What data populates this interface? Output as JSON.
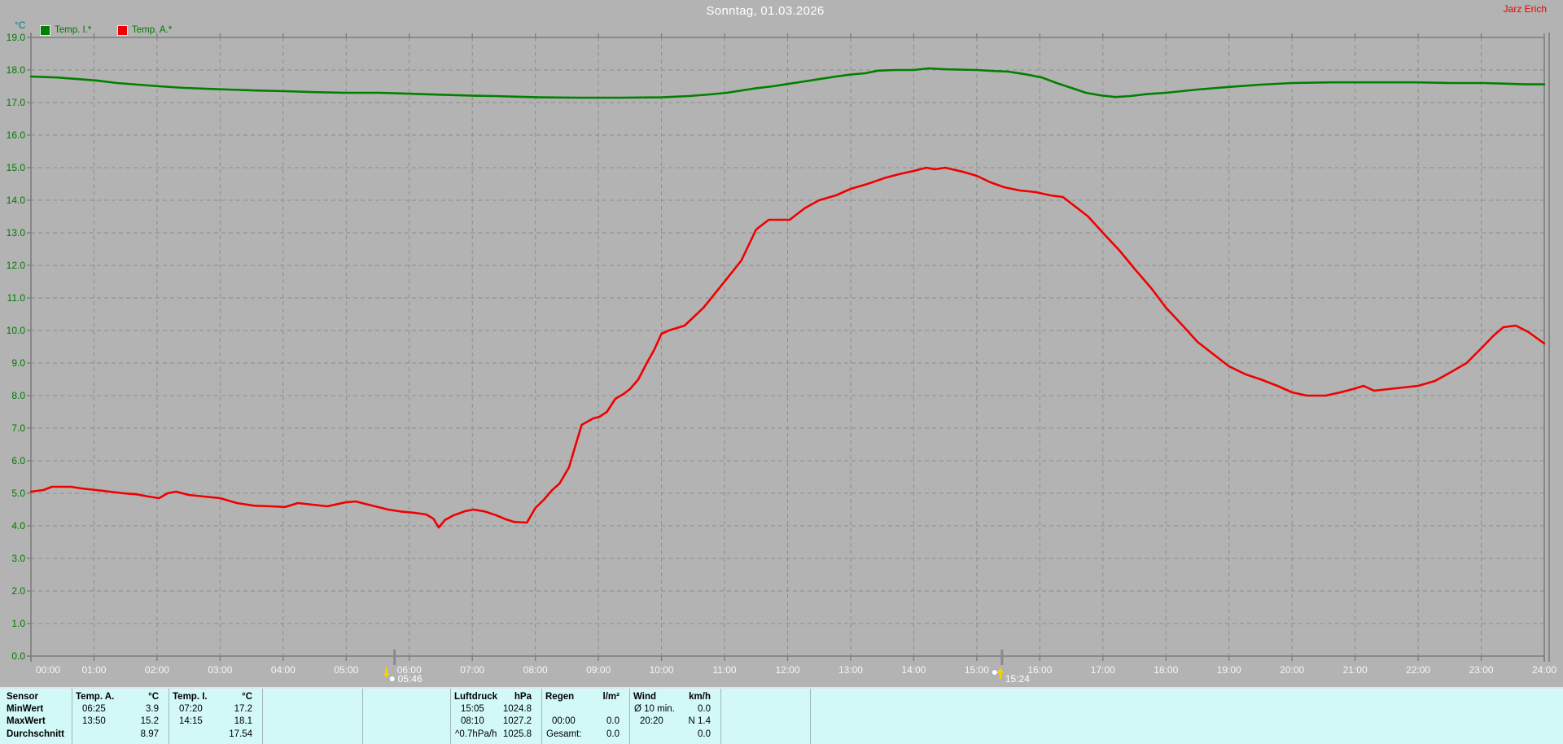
{
  "header": {
    "title": "Sonntag, 01.03.2026",
    "user": "Jarz Erich"
  },
  "legend": {
    "unit": "°C",
    "items": [
      {
        "label": "Temp. I.*",
        "color": "#008000"
      },
      {
        "label": "Temp. A.*",
        "color": "#f00000"
      }
    ]
  },
  "chart_data": {
    "type": "line",
    "title": "Sonntag, 01.03.2026",
    "xlabel": "time",
    "ylabel": "°C",
    "ylim": [
      0,
      19
    ],
    "xlim_minutes": [
      0,
      1440
    ],
    "grid": "dashed-gray",
    "legend_position": "top-left",
    "y_ticks": [
      "19.0",
      "18.0",
      "17.0",
      "16.0",
      "15.0",
      "14.0",
      "13.0",
      "12.0",
      "11.0",
      "10.0",
      "9.0",
      "8.0",
      "7.0",
      "6.0",
      "5.0",
      "4.0",
      "3.0",
      "2.0",
      "1.0",
      "0.0"
    ],
    "x_ticks": [
      "00:00",
      "01:00",
      "02:00",
      "03:00",
      "04:00",
      "05:00",
      "06:00",
      "07:00",
      "08:00",
      "09:00",
      "10:00",
      "11:00",
      "12:00",
      "13:00",
      "14:00",
      "15:00",
      "16:00",
      "17:00",
      "18:00",
      "19:00",
      "20:00",
      "21:00",
      "22:00",
      "23:00",
      "24:00"
    ],
    "series": [
      {
        "name": "Temp. I.*",
        "color": "#008000",
        "points": [
          [
            0,
            17.8
          ],
          [
            25,
            17.77
          ],
          [
            45,
            17.72
          ],
          [
            62,
            17.68
          ],
          [
            82,
            17.6
          ],
          [
            102,
            17.55
          ],
          [
            122,
            17.5
          ],
          [
            146,
            17.45
          ],
          [
            170,
            17.42
          ],
          [
            188,
            17.4
          ],
          [
            215,
            17.37
          ],
          [
            242,
            17.35
          ],
          [
            270,
            17.32
          ],
          [
            300,
            17.3
          ],
          [
            332,
            17.3
          ],
          [
            362,
            17.27
          ],
          [
            392,
            17.24
          ],
          [
            422,
            17.21
          ],
          [
            442,
            17.2
          ],
          [
            462,
            17.18
          ],
          [
            484,
            17.16
          ],
          [
            520,
            17.15
          ],
          [
            562,
            17.15
          ],
          [
            600,
            17.16
          ],
          [
            626,
            17.2
          ],
          [
            646,
            17.25
          ],
          [
            662,
            17.3
          ],
          [
            676,
            17.37
          ],
          [
            690,
            17.44
          ],
          [
            706,
            17.5
          ],
          [
            720,
            17.57
          ],
          [
            736,
            17.65
          ],
          [
            750,
            17.72
          ],
          [
            766,
            17.8
          ],
          [
            780,
            17.86
          ],
          [
            794,
            17.9
          ],
          [
            806,
            17.98
          ],
          [
            822,
            18.0
          ],
          [
            840,
            18.0
          ],
          [
            854,
            18.05
          ],
          [
            872,
            18.02
          ],
          [
            900,
            18.0
          ],
          [
            916,
            17.97
          ],
          [
            930,
            17.95
          ],
          [
            946,
            17.87
          ],
          [
            962,
            17.77
          ],
          [
            976,
            17.6
          ],
          [
            990,
            17.45
          ],
          [
            1004,
            17.3
          ],
          [
            1018,
            17.22
          ],
          [
            1032,
            17.17
          ],
          [
            1046,
            17.2
          ],
          [
            1062,
            17.26
          ],
          [
            1080,
            17.3
          ],
          [
            1110,
            17.4
          ],
          [
            1140,
            17.48
          ],
          [
            1170,
            17.55
          ],
          [
            1200,
            17.6
          ],
          [
            1236,
            17.62
          ],
          [
            1280,
            17.62
          ],
          [
            1320,
            17.62
          ],
          [
            1352,
            17.6
          ],
          [
            1382,
            17.6
          ],
          [
            1404,
            17.58
          ],
          [
            1422,
            17.56
          ],
          [
            1440,
            17.56
          ]
        ]
      },
      {
        "name": "Temp. A.*",
        "color": "#f00000",
        "points": [
          [
            0,
            5.05
          ],
          [
            12,
            5.1
          ],
          [
            20,
            5.2
          ],
          [
            38,
            5.2
          ],
          [
            48,
            5.15
          ],
          [
            62,
            5.1
          ],
          [
            75,
            5.05
          ],
          [
            88,
            5.0
          ],
          [
            100,
            4.97
          ],
          [
            112,
            4.9
          ],
          [
            122,
            4.85
          ],
          [
            130,
            5.0
          ],
          [
            138,
            5.05
          ],
          [
            150,
            4.95
          ],
          [
            165,
            4.9
          ],
          [
            180,
            4.85
          ],
          [
            196,
            4.7
          ],
          [
            212,
            4.62
          ],
          [
            228,
            4.6
          ],
          [
            242,
            4.58
          ],
          [
            254,
            4.7
          ],
          [
            268,
            4.65
          ],
          [
            282,
            4.6
          ],
          [
            299,
            4.72
          ],
          [
            309,
            4.75
          ],
          [
            325,
            4.62
          ],
          [
            340,
            4.5
          ],
          [
            352,
            4.44
          ],
          [
            365,
            4.4
          ],
          [
            376,
            4.35
          ],
          [
            383,
            4.22
          ],
          [
            388,
            3.95
          ],
          [
            394,
            4.18
          ],
          [
            402,
            4.32
          ],
          [
            413,
            4.45
          ],
          [
            421,
            4.5
          ],
          [
            432,
            4.44
          ],
          [
            443,
            4.32
          ],
          [
            452,
            4.2
          ],
          [
            460,
            4.12
          ],
          [
            472,
            4.1
          ],
          [
            480,
            4.55
          ],
          [
            488,
            4.8
          ],
          [
            496,
            5.1
          ],
          [
            503,
            5.3
          ],
          [
            512,
            5.8
          ],
          [
            518,
            6.45
          ],
          [
            524,
            7.1
          ],
          [
            535,
            7.3
          ],
          [
            541,
            7.35
          ],
          [
            548,
            7.5
          ],
          [
            556,
            7.9
          ],
          [
            564,
            8.05
          ],
          [
            570,
            8.2
          ],
          [
            578,
            8.5
          ],
          [
            586,
            9.0
          ],
          [
            593,
            9.4
          ],
          [
            600,
            9.9
          ],
          [
            607,
            10.0
          ],
          [
            622,
            10.15
          ],
          [
            640,
            10.7
          ],
          [
            660,
            11.5
          ],
          [
            676,
            12.15
          ],
          [
            690,
            13.1
          ],
          [
            702,
            13.4
          ],
          [
            722,
            13.4
          ],
          [
            736,
            13.75
          ],
          [
            750,
            14.0
          ],
          [
            766,
            14.15
          ],
          [
            780,
            14.35
          ],
          [
            796,
            14.5
          ],
          [
            812,
            14.68
          ],
          [
            826,
            14.8
          ],
          [
            840,
            14.9
          ],
          [
            852,
            15.0
          ],
          [
            860,
            14.95
          ],
          [
            870,
            15.0
          ],
          [
            886,
            14.88
          ],
          [
            900,
            14.75
          ],
          [
            913,
            14.55
          ],
          [
            926,
            14.4
          ],
          [
            941,
            14.3
          ],
          [
            956,
            14.25
          ],
          [
            970,
            14.15
          ],
          [
            982,
            14.1
          ],
          [
            992,
            13.85
          ],
          [
            1006,
            13.5
          ],
          [
            1020,
            13.0
          ],
          [
            1036,
            12.45
          ],
          [
            1050,
            11.9
          ],
          [
            1066,
            11.3
          ],
          [
            1080,
            10.7
          ],
          [
            1096,
            10.15
          ],
          [
            1110,
            9.65
          ],
          [
            1126,
            9.25
          ],
          [
            1140,
            8.9
          ],
          [
            1156,
            8.65
          ],
          [
            1170,
            8.5
          ],
          [
            1186,
            8.3
          ],
          [
            1200,
            8.1
          ],
          [
            1214,
            8.0
          ],
          [
            1232,
            8.0
          ],
          [
            1246,
            8.1
          ],
          [
            1258,
            8.2
          ],
          [
            1268,
            8.3
          ],
          [
            1278,
            8.15
          ],
          [
            1292,
            8.2
          ],
          [
            1306,
            8.25
          ],
          [
            1320,
            8.3
          ],
          [
            1336,
            8.45
          ],
          [
            1350,
            8.7
          ],
          [
            1366,
            9.0
          ],
          [
            1380,
            9.45
          ],
          [
            1392,
            9.85
          ],
          [
            1401,
            10.1
          ],
          [
            1413,
            10.15
          ],
          [
            1425,
            9.95
          ],
          [
            1440,
            9.6
          ]
        ]
      }
    ],
    "sun_markers": [
      {
        "type": "sunrise",
        "label": "05:46",
        "minutes": 346
      },
      {
        "type": "sunset",
        "label": "15:24",
        "minutes": 924
      }
    ]
  },
  "stats_table": {
    "row_labels": [
      "Sensor",
      "MinWert",
      "MaxWert",
      "Durchschnitt"
    ],
    "columns": [
      {
        "name": "Temp. A.",
        "unit": "°C",
        "rows": [
          [
            "06:25",
            "3.9"
          ],
          [
            "13:50",
            "15.2"
          ],
          [
            "",
            "8.97"
          ]
        ]
      },
      {
        "name": "Temp. I.",
        "unit": "°C",
        "rows": [
          [
            "07:20",
            "17.2"
          ],
          [
            "14:15",
            "18.1"
          ],
          [
            "",
            "17.54"
          ]
        ]
      },
      {
        "name": "",
        "unit": "",
        "rows": [
          [
            "",
            ""
          ],
          [
            "",
            ""
          ],
          [
            "",
            ""
          ]
        ]
      },
      {
        "name": "",
        "unit": "",
        "rows": [
          [
            "",
            ""
          ],
          [
            "",
            ""
          ],
          [
            "",
            ""
          ]
        ]
      },
      {
        "name": "Luftdruck",
        "unit": "hPa",
        "rows": [
          [
            "15:05",
            "1024.8"
          ],
          [
            "08:10",
            "1027.2"
          ],
          [
            "^0.7hPa/h",
            "1025.8"
          ]
        ]
      },
      {
        "name": "Regen",
        "unit": "l/m²",
        "rows": [
          [
            "",
            ""
          ],
          [
            "00:00",
            "0.0"
          ],
          [
            "Gesamt:",
            "0.0"
          ]
        ]
      },
      {
        "name": "Wind",
        "unit": "km/h",
        "rows": [
          [
            "Ø 10 min.",
            "0.0"
          ],
          [
            "20:20",
            "N 1.4"
          ],
          [
            "",
            "0.0"
          ]
        ]
      },
      {
        "name": "",
        "unit": "",
        "rows": [
          [
            "",
            ""
          ],
          [
            "",
            ""
          ],
          [
            "",
            ""
          ]
        ]
      }
    ]
  }
}
